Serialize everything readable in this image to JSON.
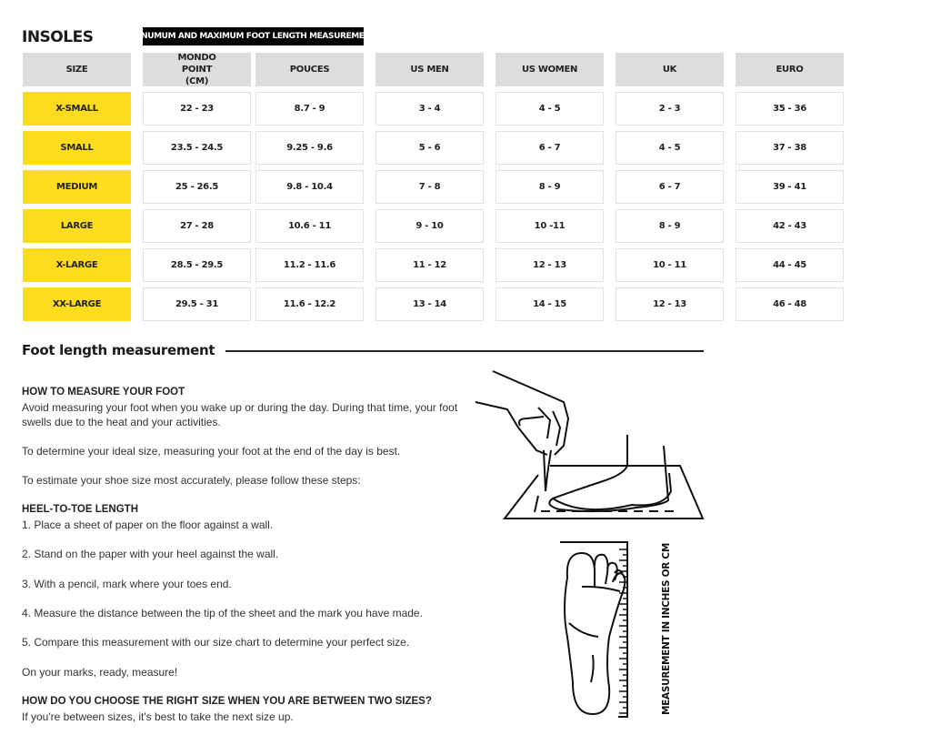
{
  "title": "INSOLES",
  "banner": "MINUMUM AND MAXIMUM FOOT LENGTH MEASUREMENT",
  "colors": {
    "size_cell": "#fddc1f",
    "header_cell": "#dcddde"
  },
  "table": {
    "headers": [
      "SIZE",
      "MONDO POINT (CM)",
      "POUCES",
      "US MEN",
      "US WOMEN",
      "UK",
      "EURO"
    ],
    "rows": [
      [
        "X-SMALL",
        "22 - 23",
        "8.7 - 9",
        "3 - 4",
        "4 - 5",
        "2 - 3",
        "35 - 36"
      ],
      [
        "SMALL",
        "23.5 - 24.5",
        "9.25 - 9.6",
        "5 - 6",
        "6 - 7",
        "4 - 5",
        "37 - 38"
      ],
      [
        "MEDIUM",
        "25 - 26.5",
        "9.8 - 10.4",
        "7 - 8",
        "8 - 9",
        "6 - 7",
        "39 - 41"
      ],
      [
        "LARGE",
        "27 - 28",
        "10.6 - 11",
        "9 - 10",
        "10 -11",
        "8 - 9",
        "42 - 43"
      ],
      [
        "X-LARGE",
        "28.5 - 29.5",
        "11.2 - 11.6",
        "11 - 12",
        "12 - 13",
        "10 - 11",
        "44 - 45"
      ],
      [
        "XX-LARGE",
        "29.5 - 31",
        "11.6 - 12.2",
        "13 - 14",
        "14 - 15",
        "12 - 13",
        "46 - 48"
      ]
    ]
  },
  "section_title": "Foot length measurement",
  "how": {
    "heading": "HOW TO MEASURE YOUR FOOT",
    "p1": "Avoid measuring your foot when you wake up or during the day. During that time, your foot swells due to the heat and your activities.",
    "p2": "To determine your ideal size, measuring your foot at the end of the day is best.",
    "p3": "To estimate your shoe size most accurately, please follow these steps:"
  },
  "heel": {
    "heading": "HEEL-TO-TOE LENGTH",
    "steps": [
      "1. Place a sheet of paper on the floor against a wall.",
      "2. Stand on the paper with your heel against the wall.",
      "3. With a pencil, mark where your toes end.",
      "4. Measure the distance between the tip of the sheet and the mark you have made.",
      "5. Compare this measurement with our size chart to determine your perfect size."
    ],
    "closing": "On your marks, ready, measure!"
  },
  "between": {
    "heading": "HOW DO YOU CHOOSE THE RIGHT SIZE WHEN YOU ARE BETWEEN TWO SIZES?",
    "text": "If you're between sizes, it's best to take the next size up."
  },
  "illustration_label": "MEASUREMENT IN INCHES OR CM"
}
